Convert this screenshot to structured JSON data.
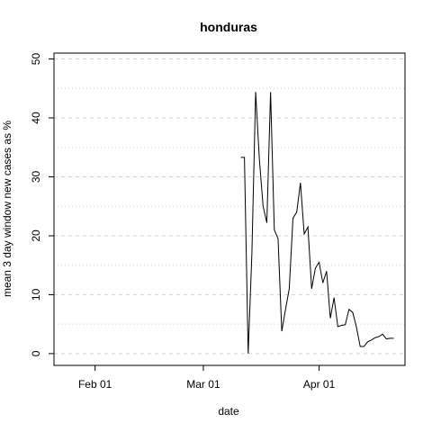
{
  "chart_data": {
    "type": "line",
    "title": "honduras",
    "xlabel": "date",
    "ylabel": "mean  3  day window new cases as %",
    "xlim": [
      "2020-01-21",
      "2020-04-24"
    ],
    "ylim": [
      -2,
      51
    ],
    "x_ticks": [
      {
        "date": "2020-02-01",
        "label": "Feb 01"
      },
      {
        "date": "2020-03-01",
        "label": "Mar 01"
      },
      {
        "date": "2020-04-01",
        "label": "Apr 01"
      }
    ],
    "y_ticks": [
      0,
      10,
      20,
      30,
      40,
      50
    ],
    "y_minor_grid": [
      5,
      15,
      25,
      35,
      45
    ],
    "grid": true,
    "series": [
      {
        "color": "#000000",
        "x": [
          "2020-03-11",
          "2020-03-12",
          "2020-03-13",
          "2020-03-14",
          "2020-03-15",
          "2020-03-16",
          "2020-03-17",
          "2020-03-18",
          "2020-03-19",
          "2020-03-20",
          "2020-03-21",
          "2020-03-22",
          "2020-03-23",
          "2020-03-24",
          "2020-03-25",
          "2020-03-26",
          "2020-03-27",
          "2020-03-28",
          "2020-03-29",
          "2020-03-30",
          "2020-03-31",
          "2020-04-01",
          "2020-04-02",
          "2020-04-03",
          "2020-04-04",
          "2020-04-05",
          "2020-04-06",
          "2020-04-07",
          "2020-04-08",
          "2020-04-09",
          "2020-04-10",
          "2020-04-11",
          "2020-04-12",
          "2020-04-13",
          "2020-04-14",
          "2020-04-15",
          "2020-04-16",
          "2020-04-17",
          "2020-04-18",
          "2020-04-19",
          "2020-04-20",
          "2020-04-21"
        ],
        "y": [
          33.3,
          33.3,
          0.0,
          17.0,
          44.4,
          33.0,
          25.0,
          22.2,
          44.4,
          21.0,
          19.5,
          3.8,
          7.5,
          11.0,
          23.0,
          24.0,
          29.0,
          20.3,
          21.5,
          11.0,
          14.5,
          15.5,
          12.0,
          14.0,
          6.0,
          9.5,
          4.6,
          4.8,
          4.9,
          7.5,
          7.0,
          4.5,
          1.2,
          1.2,
          2.0,
          2.3,
          2.7,
          2.9,
          3.3,
          2.5,
          2.6,
          2.6
        ]
      }
    ]
  }
}
